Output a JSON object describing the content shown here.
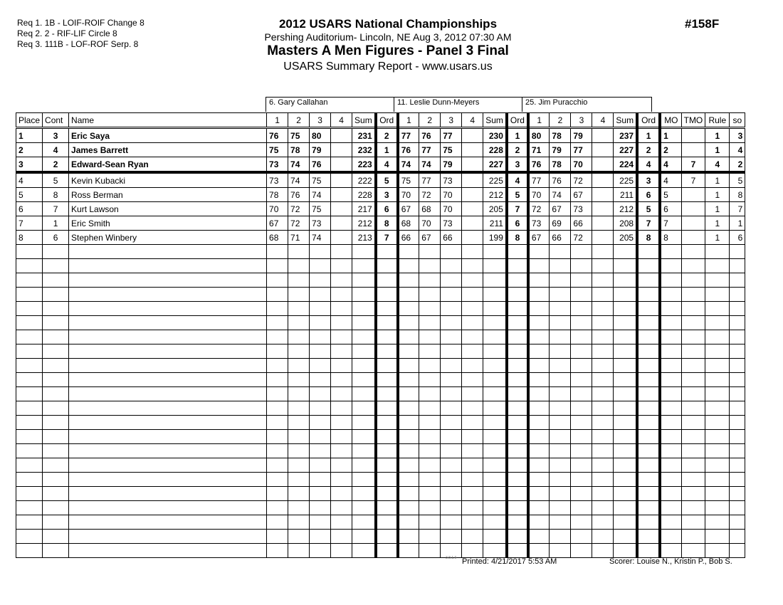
{
  "requirements": [
    "Req  1.  1B - LOIF-ROIF Change 8",
    "Req  2.  2 - RIF-LIF Circle 8",
    "Req  3.  111B - LOF-ROF Serp. 8"
  ],
  "header": {
    "title": "2012 USARS National Championships",
    "location": "Pershing Auditorium- Lincoln, NE  Aug 3, 2012  07:30 AM",
    "event": "Masters A Men Figures - Panel 3 Final",
    "report": "USARS Summary Report - www.usars.us",
    "event_number": "#158F"
  },
  "judges": [
    "6.  Gary Callahan",
    "11.  Leslie Dunn-Meyers",
    "25.  Jim Puracchio"
  ],
  "columns": {
    "place": "Place",
    "cont": "Cont",
    "name": "Name",
    "scores": [
      "1",
      "2",
      "3",
      "4"
    ],
    "sum": "Sum",
    "ord": "Ord",
    "mo": "MO",
    "tmo": "TMO",
    "rule": "Rule",
    "so": "so"
  },
  "rows": [
    {
      "place": "1",
      "cont": "3",
      "name": "Eric Saya",
      "bold": true,
      "j": [
        [
          "76",
          "75",
          "80",
          "",
          "231",
          "2"
        ],
        [
          "77",
          "76",
          "77",
          "",
          "230",
          "1"
        ],
        [
          "80",
          "78",
          "79",
          "",
          "237",
          "1"
        ]
      ],
      "mo": "1",
      "tmo": "",
      "rule": "1",
      "so": "3"
    },
    {
      "place": "2",
      "cont": "4",
      "name": "James Barrett",
      "bold": true,
      "j": [
        [
          "75",
          "78",
          "79",
          "",
          "232",
          "1"
        ],
        [
          "76",
          "77",
          "75",
          "",
          "228",
          "2"
        ],
        [
          "71",
          "79",
          "77",
          "",
          "227",
          "2"
        ]
      ],
      "mo": "2",
      "tmo": "",
      "rule": "1",
      "so": "4"
    },
    {
      "place": "3",
      "cont": "2",
      "name": "Edward-Sean Ryan",
      "bold": true,
      "j": [
        [
          "73",
          "74",
          "76",
          "",
          "223",
          "4"
        ],
        [
          "74",
          "74",
          "79",
          "",
          "227",
          "3"
        ],
        [
          "76",
          "78",
          "70",
          "",
          "224",
          "4"
        ]
      ],
      "mo": "4",
      "tmo": "7",
      "rule": "4",
      "so": "2"
    },
    {
      "place": "4",
      "cont": "5",
      "name": "Kevin Kubacki",
      "bold": false,
      "j": [
        [
          "73",
          "74",
          "75",
          "",
          "222",
          "5"
        ],
        [
          "75",
          "77",
          "73",
          "",
          "225",
          "4"
        ],
        [
          "77",
          "76",
          "72",
          "",
          "225",
          "3"
        ]
      ],
      "mo": "4",
      "tmo": "7",
      "rule": "1",
      "so": "5"
    },
    {
      "place": "5",
      "cont": "8",
      "name": "Ross Berman",
      "bold": false,
      "j": [
        [
          "78",
          "76",
          "74",
          "",
          "228",
          "3"
        ],
        [
          "70",
          "72",
          "70",
          "",
          "212",
          "5"
        ],
        [
          "70",
          "74",
          "67",
          "",
          "211",
          "6"
        ]
      ],
      "mo": "5",
      "tmo": "",
      "rule": "1",
      "so": "8"
    },
    {
      "place": "6",
      "cont": "7",
      "name": "Kurt Lawson",
      "bold": false,
      "j": [
        [
          "70",
          "72",
          "75",
          "",
          "217",
          "6"
        ],
        [
          "67",
          "68",
          "70",
          "",
          "205",
          "7"
        ],
        [
          "72",
          "67",
          "73",
          "",
          "212",
          "5"
        ]
      ],
      "mo": "6",
      "tmo": "",
      "rule": "1",
      "so": "7"
    },
    {
      "place": "7",
      "cont": "1",
      "name": "Eric Smith",
      "bold": false,
      "j": [
        [
          "67",
          "72",
          "73",
          "",
          "212",
          "8"
        ],
        [
          "68",
          "70",
          "73",
          "",
          "211",
          "6"
        ],
        [
          "73",
          "69",
          "66",
          "",
          "208",
          "7"
        ]
      ],
      "mo": "7",
      "tmo": "",
      "rule": "1",
      "so": "1"
    },
    {
      "place": "8",
      "cont": "6",
      "name": "Stephen Winbery",
      "bold": false,
      "j": [
        [
          "68",
          "71",
          "74",
          "",
          "213",
          "7"
        ],
        [
          "66",
          "67",
          "66",
          "",
          "199",
          "8"
        ],
        [
          "67",
          "66",
          "72",
          "",
          "205",
          "8"
        ]
      ],
      "mo": "8",
      "tmo": "",
      "rule": "1",
      "so": "6"
    }
  ],
  "footer": {
    "version": "3.8.1.6",
    "printed": "Printed:  4/21/2017  5:53 AM",
    "scorer": "Scorer:   Louise N., Kristin P., Bob S."
  }
}
